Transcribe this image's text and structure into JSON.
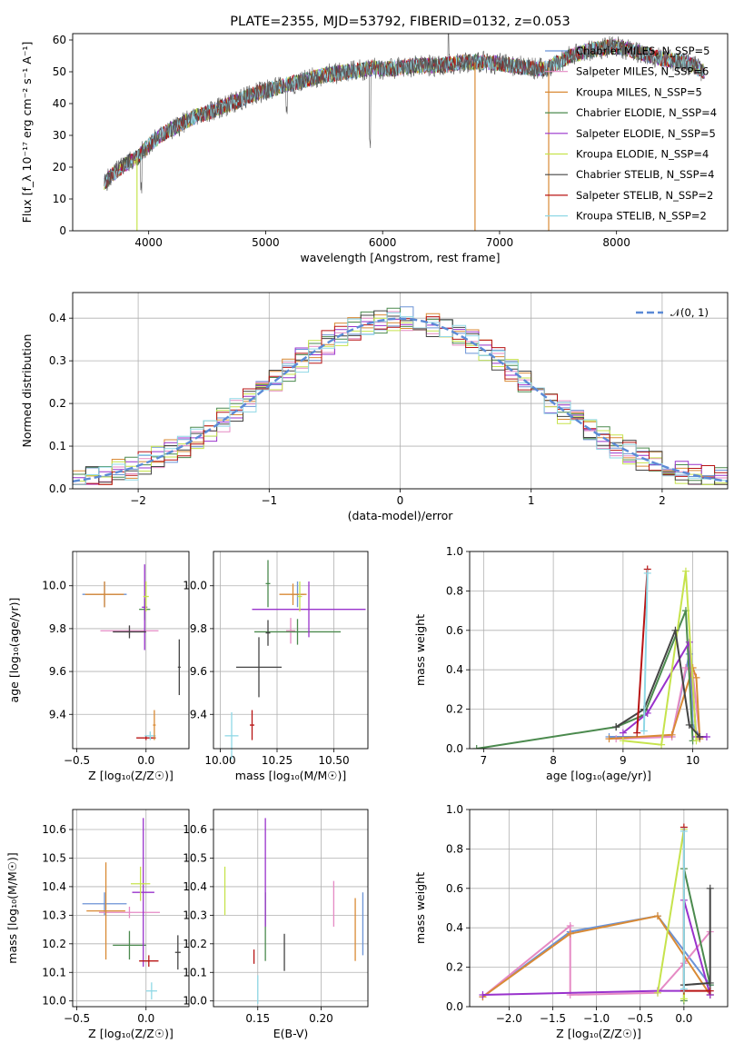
{
  "chart_data": [
    {
      "id": "spectrum",
      "type": "line",
      "title": "PLATE=2355, MJD=53792, FIBERID=0132, z=0.053",
      "xlabel": "wavelength [Angstrom, rest frame]",
      "ylabel": "Flux [f_λ 10⁻¹⁷ erg cm⁻² s⁻¹ A⁻¹]",
      "xlim": [
        3350,
        8950
      ],
      "ylim": [
        0,
        62
      ],
      "xticks": [
        "4000",
        "5000",
        "6000",
        "7000",
        "8000"
      ],
      "yticks": [
        "0",
        "10",
        "20",
        "30",
        "40",
        "50",
        "60"
      ],
      "legend_position": "right",
      "grid": false,
      "observed_spectrum": {
        "x": [
          3620,
          3700,
          3800,
          3900,
          4000,
          4100,
          4200,
          4300,
          4400,
          4500,
          4700,
          4900,
          5100,
          5300,
          5500,
          5700,
          5900,
          6100,
          6300,
          6500,
          6700,
          6900,
          7100,
          7300,
          7400,
          7600,
          7800,
          8000,
          8200,
          8400,
          8600,
          8750
        ],
        "y": [
          15,
          18,
          21,
          23,
          27,
          30,
          32,
          34,
          36,
          37,
          40,
          43,
          45,
          47,
          49,
          50,
          51,
          51,
          52,
          52,
          53,
          53,
          52,
          51,
          51,
          55,
          57,
          58,
          56,
          54,
          53,
          50
        ]
      },
      "models": [
        {
          "name": "Chabrier MILES, N_SSP=5",
          "color": "#6b93d6"
        },
        {
          "name": "Salpeter MILES, N_SSP=6",
          "color": "#e58ac4"
        },
        {
          "name": "Kroupa MILES, N_SSP=5",
          "color": "#d98a35"
        },
        {
          "name": "Chabrier ELODIE, N_SSP=4",
          "color": "#4b8a4e"
        },
        {
          "name": "Salpeter ELODIE, N_SSP=5",
          "color": "#9932cc"
        },
        {
          "name": "Kroupa ELODIE, N_SSP=4",
          "color": "#c6e34c"
        },
        {
          "name": "Chabrier STELIB, N_SSP=4",
          "color": "#444444"
        },
        {
          "name": "Salpeter STELIB, N_SSP=2",
          "color": "#b81414"
        },
        {
          "name": "Kroupa STELIB, N_SSP=2",
          "color": "#8fd8e6"
        }
      ],
      "vertical_drops": [
        {
          "x": 3900,
          "color": "#c6e34c"
        },
        {
          "x": 6790,
          "color": "#d98a35"
        },
        {
          "x": 7420,
          "color": "#d98a35"
        }
      ]
    },
    {
      "id": "residual-histogram",
      "type": "histogram",
      "xlabel": "(data-model)/error",
      "ylabel": "Normed distribution",
      "xlim": [
        -2.5,
        2.5
      ],
      "ylim": [
        0,
        0.46
      ],
      "xticks": [
        "−2",
        "−1",
        "0",
        "1",
        "2"
      ],
      "yticks": [
        "0.0",
        "0.1",
        "0.2",
        "0.3",
        "0.4"
      ],
      "grid": true,
      "legend": "𝒩(0, 1)",
      "legend_position": "top-right",
      "bin_width": 0.1
    },
    {
      "id": "age-vs-z",
      "type": "errorbar",
      "xlabel": "Z [log₁₀(Z/Z☉)]",
      "ylabel": "age  [log₁₀(age/yr)]",
      "xlim": [
        -0.53,
        0.31
      ],
      "ylim": [
        9.24,
        10.16
      ],
      "xticks": [
        "−0.5",
        "0.0"
      ],
      "xtick_values": [
        -0.5,
        0.0
      ],
      "yticks": [
        "9.4",
        "9.6",
        "9.8",
        "10.0"
      ],
      "ytick_values": [
        9.4,
        9.6,
        9.8,
        10.0
      ],
      "grid": true,
      "points": [
        {
          "model": 0,
          "x": -0.3,
          "xerr": 0.16,
          "y": 9.96,
          "yerr": 0.06
        },
        {
          "model": 1,
          "x": -0.12,
          "xerr": 0.21,
          "y": 9.79,
          "yerr": 0.02
        },
        {
          "model": 2,
          "x": -0.3,
          "xerr": 0.14,
          "y": 9.96,
          "yerr": 0.06
        },
        {
          "model": 3,
          "x": -0.01,
          "xerr": 0.04,
          "y": 9.89,
          "yerr": 0.05
        },
        {
          "model": 4,
          "x": -0.01,
          "xerr": 0.02,
          "y": 9.9,
          "yerr": 0.2
        },
        {
          "model": 5,
          "x": 0.0,
          "xerr": 0.02,
          "y": 9.95,
          "yerr": 0.07
        },
        {
          "model": 6,
          "x": -0.12,
          "xerr": 0.12,
          "y": 9.785,
          "yerr": 0.03
        },
        {
          "model": 7,
          "x": 0.0,
          "xerr": 0.07,
          "y": 9.29,
          "yerr": 0.01
        },
        {
          "model": 8,
          "x": 0.03,
          "xerr": 0.04,
          "y": 9.3,
          "yerr": 0.02
        },
        {
          "model": 6,
          "x": 0.24,
          "xerr": 0.01,
          "y": 9.62,
          "yerr": 0.13
        },
        {
          "model": 2,
          "x": 0.06,
          "xerr": 0.01,
          "y": 9.35,
          "yerr": 0.07
        }
      ]
    },
    {
      "id": "age-vs-mass",
      "type": "errorbar",
      "xlabel": "mass [log₁₀(M/M☉)]",
      "ylabel": "",
      "xlim": [
        9.97,
        10.65
      ],
      "ylim": [
        9.24,
        10.16
      ],
      "xticks": [
        "10.00",
        "10.25",
        "10.50"
      ],
      "xtick_values": [
        10.0,
        10.25,
        10.5
      ],
      "yticks": [
        "9.4",
        "9.6",
        "9.8",
        "10.0"
      ],
      "ytick_values": [
        9.4,
        9.6,
        9.8,
        10.0
      ],
      "grid": true,
      "points": [
        {
          "model": 0,
          "x": 10.34,
          "xerr": 0.03,
          "y": 9.96,
          "yerr": 0.06
        },
        {
          "model": 1,
          "x": 10.31,
          "xerr": 0.02,
          "y": 9.79,
          "yerr": 0.06
        },
        {
          "model": 2,
          "x": 10.32,
          "xerr": 0.06,
          "y": 9.96,
          "yerr": 0.05
        },
        {
          "model": 3,
          "x": 10.34,
          "xerr": 0.19,
          "y": 9.785,
          "yerr": 0.06
        },
        {
          "model": 4,
          "x": 10.39,
          "xerr": 0.25,
          "y": 9.89,
          "yerr": 0.13
        },
        {
          "model": 5,
          "x": 10.35,
          "xerr": 0.01,
          "y": 9.95,
          "yerr": 0.07
        },
        {
          "model": 6,
          "x": 10.17,
          "xerr": 0.1,
          "y": 9.62,
          "yerr": 0.14
        },
        {
          "model": 7,
          "x": 10.14,
          "xerr": 0.01,
          "y": 9.35,
          "yerr": 0.07
        },
        {
          "model": 8,
          "x": 10.05,
          "xerr": 0.03,
          "y": 9.3,
          "yerr": 0.11
        },
        {
          "model": 3,
          "x": 10.21,
          "xerr": 0.01,
          "y": 10.01,
          "yerr": 0.11
        },
        {
          "model": 6,
          "x": 10.21,
          "xerr": 0.01,
          "y": 9.78,
          "yerr": 0.06
        }
      ]
    },
    {
      "id": "massweight-vs-age",
      "type": "line",
      "xlabel": "age  [log₁₀(age/yr)]",
      "ylabel": "mass weight",
      "xlim": [
        6.8,
        10.5
      ],
      "ylim": [
        0,
        1.0
      ],
      "xticks": [
        "7",
        "8",
        "9",
        "10"
      ],
      "xtick_values": [
        7,
        8,
        9,
        10
      ],
      "yticks": [
        "0.0",
        "0.2",
        "0.4",
        "0.6",
        "0.8",
        "1.0"
      ],
      "ytick_values": [
        0,
        0.2,
        0.4,
        0.6,
        0.8,
        1.0
      ],
      "grid": true,
      "series": [
        {
          "model": 0,
          "x": [
            8.8,
            9.7,
            9.95,
            10.0,
            10.1
          ],
          "y": [
            0.06,
            0.06,
            0.48,
            0.12,
            0.06
          ]
        },
        {
          "model": 1,
          "x": [
            8.9,
            9.7,
            9.9,
            10.0,
            10.1
          ],
          "y": [
            0.05,
            0.06,
            0.41,
            0.38,
            0.06
          ]
        },
        {
          "model": 2,
          "x": [
            8.8,
            9.7,
            10.0,
            10.05,
            10.1
          ],
          "y": [
            0.05,
            0.07,
            0.41,
            0.36,
            0.05
          ]
        },
        {
          "model": 3,
          "x": [
            6.9,
            8.9,
            9.3,
            9.9,
            10.0
          ],
          "y": [
            0.0,
            0.11,
            0.17,
            0.7,
            0.04
          ]
        },
        {
          "model": 4,
          "x": [
            9.0,
            9.35,
            9.95,
            10.05,
            10.2
          ],
          "y": [
            0.08,
            0.18,
            0.54,
            0.06,
            0.06
          ]
        },
        {
          "model": 5,
          "x": [
            9.0,
            9.55,
            9.9,
            10.05
          ],
          "y": [
            0.04,
            0.02,
            0.9,
            0.04
          ]
        },
        {
          "model": 6,
          "x": [
            8.9,
            9.3,
            9.75,
            9.95,
            10.1
          ],
          "y": [
            0.11,
            0.2,
            0.6,
            0.12,
            0.06
          ]
        },
        {
          "model": 7,
          "x": [
            9.2,
            9.35
          ],
          "y": [
            0.08,
            0.91
          ]
        },
        {
          "model": 8,
          "x": [
            9.3,
            9.35
          ],
          "y": [
            0.09,
            0.89
          ]
        }
      ]
    },
    {
      "id": "mass-vs-z",
      "type": "errorbar",
      "xlabel": "Z [log₁₀(Z/Z☉)]",
      "ylabel": "mass [log₁₀(M/M☉)]",
      "xlim": [
        -0.53,
        0.31
      ],
      "ylim": [
        9.98,
        10.67
      ],
      "xticks": [
        "−0.5",
        "0.0"
      ],
      "xtick_values": [
        -0.5,
        0.0
      ],
      "yticks": [
        "10.0",
        "10.1",
        "10.2",
        "10.3",
        "10.4",
        "10.5",
        "10.6"
      ],
      "ytick_values": [
        10.0,
        10.1,
        10.2,
        10.3,
        10.4,
        10.5,
        10.6
      ],
      "grid": true,
      "points": [
        {
          "model": 0,
          "x": -0.3,
          "xerr": 0.16,
          "y": 10.34,
          "yerr": 0.04
        },
        {
          "model": 1,
          "x": -0.12,
          "xerr": 0.22,
          "y": 10.31,
          "yerr": 0.02
        },
        {
          "model": 2,
          "x": -0.29,
          "xerr": 0.14,
          "y": 10.315,
          "yerr": 0.17
        },
        {
          "model": 3,
          "x": -0.12,
          "xerr": 0.12,
          "y": 10.195,
          "yerr": 0.05
        },
        {
          "model": 4,
          "x": -0.02,
          "xerr": 0.08,
          "y": 10.38,
          "yerr": 0.26
        },
        {
          "model": 5,
          "x": -0.04,
          "xerr": 0.07,
          "y": 10.41,
          "yerr": 0.06
        },
        {
          "model": 6,
          "x": 0.23,
          "xerr": 0.02,
          "y": 10.17,
          "yerr": 0.06
        },
        {
          "model": 7,
          "x": 0.02,
          "xerr": 0.07,
          "y": 10.14,
          "yerr": 0.02
        },
        {
          "model": 8,
          "x": 0.04,
          "xerr": 0.04,
          "y": 10.035,
          "yerr": 0.03
        }
      ]
    },
    {
      "id": "mass-vs-ebv",
      "type": "errorbar",
      "xlabel": "E(B-V)",
      "ylabel": "",
      "xlim": [
        0.115,
        0.237
      ],
      "ylim": [
        9.98,
        10.67
      ],
      "xticks": [
        "0.15",
        "0.20"
      ],
      "xtick_values": [
        0.15,
        0.2
      ],
      "yticks": [
        "10.0",
        "10.1",
        "10.2",
        "10.3",
        "10.4",
        "10.5",
        "10.6"
      ],
      "ytick_values": [
        10.0,
        10.1,
        10.2,
        10.3,
        10.4,
        10.5,
        10.6
      ],
      "grid": true,
      "points": [
        {
          "model": 0,
          "x": 0.233,
          "xerr": 0.0,
          "y": 10.27,
          "yerr": 0.11
        },
        {
          "model": 1,
          "x": 0.21,
          "xerr": 0.0,
          "y": 10.34,
          "yerr": 0.08
        },
        {
          "model": 2,
          "x": 0.227,
          "xerr": 0.0,
          "y": 10.25,
          "yerr": 0.11
        },
        {
          "model": 3,
          "x": 0.156,
          "xerr": 0.0,
          "y": 10.26,
          "yerr": 0.12
        },
        {
          "model": 4,
          "x": 0.156,
          "xerr": 0.0,
          "y": 10.45,
          "yerr": 0.19
        },
        {
          "model": 5,
          "x": 0.124,
          "xerr": 0.0,
          "y": 10.385,
          "yerr": 0.085
        },
        {
          "model": 6,
          "x": 0.171,
          "xerr": 0.0,
          "y": 10.17,
          "yerr": 0.065
        },
        {
          "model": 7,
          "x": 0.147,
          "xerr": 0.0,
          "y": 10.155,
          "yerr": 0.025
        },
        {
          "model": 8,
          "x": 0.15,
          "xerr": 0.0,
          "y": 10.04,
          "yerr": 0.05
        }
      ]
    },
    {
      "id": "massweight-vs-z",
      "type": "line",
      "xlabel": "Z [log₁₀(Z/Z☉)]",
      "ylabel": "mass weight",
      "xlim": [
        -2.45,
        0.5
      ],
      "ylim": [
        0,
        1.0
      ],
      "xticks": [
        "−2.0",
        "−1.5",
        "−1.0",
        "−0.5",
        "0.0"
      ],
      "xtick_values": [
        -2.0,
        -1.5,
        -1.0,
        -0.5,
        0.0
      ],
      "yticks": [
        "0.0",
        "0.2",
        "0.4",
        "0.6",
        "0.8",
        "1.0"
      ],
      "ytick_values": [
        0,
        0.2,
        0.4,
        0.6,
        0.8,
        1.0
      ],
      "grid": true,
      "series": [
        {
          "model": 0,
          "x": [
            -2.3,
            -1.3,
            -0.3,
            0.3,
            0.3
          ],
          "y": [
            0.05,
            0.38,
            0.46,
            0.11,
            0.06
          ]
        },
        {
          "model": 1,
          "x": [
            -2.3,
            -1.3,
            -1.3,
            -0.3,
            0.0,
            0.3
          ],
          "y": [
            0.05,
            0.41,
            0.06,
            0.07,
            0.22,
            0.38
          ]
        },
        {
          "model": 2,
          "x": [
            -2.3,
            -1.3,
            -0.3,
            0.3
          ],
          "y": [
            0.05,
            0.37,
            0.46,
            0.06
          ]
        },
        {
          "model": 3,
          "x": [
            0.0,
            0.0,
            0.3
          ],
          "y": [
            0.03,
            0.7,
            0.11
          ]
        },
        {
          "model": 4,
          "x": [
            -2.3,
            -0.3,
            0.0,
            0.0,
            0.3
          ],
          "y": [
            0.06,
            0.08,
            0.08,
            0.54,
            0.06
          ]
        },
        {
          "model": 5,
          "x": [
            -0.3,
            0.0,
            0.0
          ],
          "y": [
            0.07,
            0.9,
            0.04
          ]
        },
        {
          "model": 6,
          "x": [
            0.0,
            0.3,
            0.3
          ],
          "y": [
            0.11,
            0.12,
            0.6
          ]
        },
        {
          "model": 7,
          "x": [
            0.0,
            0.0,
            0.3
          ],
          "y": [
            0.91,
            0.08,
            0.08
          ]
        },
        {
          "model": 8,
          "x": [
            0.0,
            0.0
          ],
          "y": [
            0.89,
            0.09
          ]
        }
      ]
    }
  ]
}
